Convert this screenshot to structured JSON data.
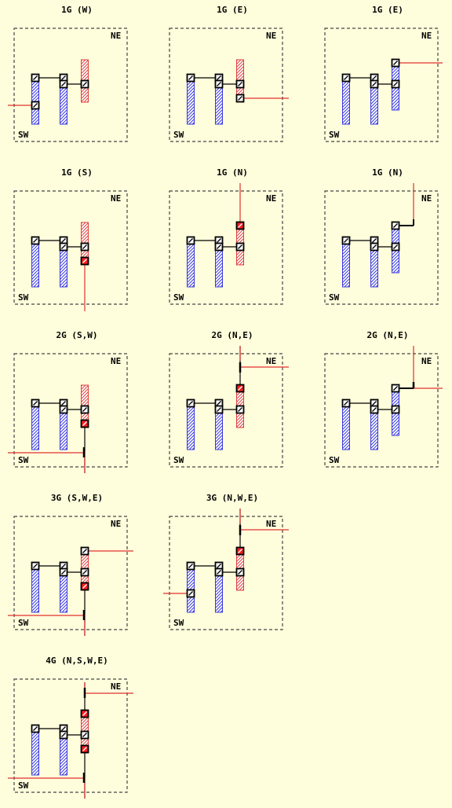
{
  "panels": [
    {
      "title": "1G (W)",
      "ne": "NE",
      "sw": "SW",
      "variant": "W"
    },
    {
      "title": "1G (E)",
      "ne": "NE",
      "sw": "SW",
      "variant": "E1"
    },
    {
      "title": "1G (E)",
      "ne": "NE",
      "sw": "SW",
      "variant": "E2"
    },
    {
      "title": "1G (S)",
      "ne": "NE",
      "sw": "SW",
      "variant": "S"
    },
    {
      "title": "1G (N)",
      "ne": "NE",
      "sw": "SW",
      "variant": "N1"
    },
    {
      "title": "1G (N)",
      "ne": "NE",
      "sw": "SW",
      "variant": "N2"
    },
    {
      "title": "2G (S,W)",
      "ne": "NE",
      "sw": "SW",
      "variant": "SW"
    },
    {
      "title": "2G (N,E)",
      "ne": "NE",
      "sw": "SW",
      "variant": "NE1"
    },
    {
      "title": "2G (N,E)",
      "ne": "NE",
      "sw": "SW",
      "variant": "NE2"
    },
    {
      "title": "3G (S,W,E)",
      "ne": "NE",
      "sw": "SW",
      "variant": "SWE"
    },
    {
      "title": "3G (N,W,E)",
      "ne": "NE",
      "sw": "SW",
      "variant": "NWE"
    },
    {
      "title": "4G (N,S,W,E)",
      "ne": "NE",
      "sw": "SW",
      "variant": "NSWE"
    }
  ],
  "colors": {
    "background": "#fffedc",
    "blue_pin": "#3a3ae0",
    "red_pin": "#e04040",
    "route": "#e03030",
    "via_fill": "#ff2020",
    "border": "#444444"
  }
}
